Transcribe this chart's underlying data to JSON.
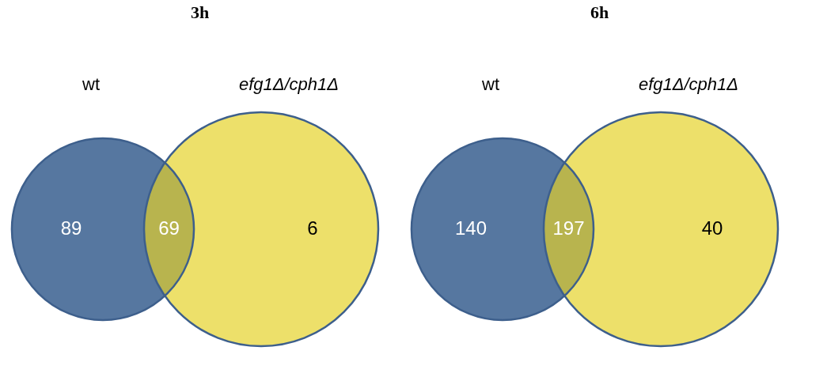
{
  "chart_data": [
    {
      "type": "other",
      "title": "3h",
      "categories": [
        "wt",
        null,
        "efg1Δ/cph1Δ"
      ],
      "values": [
        89,
        69,
        6
      ],
      "colors": [
        "#5677a0",
        "#b8b44e",
        "#ede06a"
      ],
      "data_labels": true
    },
    {
      "type": "other",
      "title": "6h",
      "categories": [
        "wt",
        null,
        "efg1Δ/cph1Δ"
      ],
      "values": [
        140,
        197,
        40
      ],
      "colors": [
        "#5677a0",
        "#b8b44e",
        "#ede06a"
      ],
      "data_labels": true
    }
  ]
}
